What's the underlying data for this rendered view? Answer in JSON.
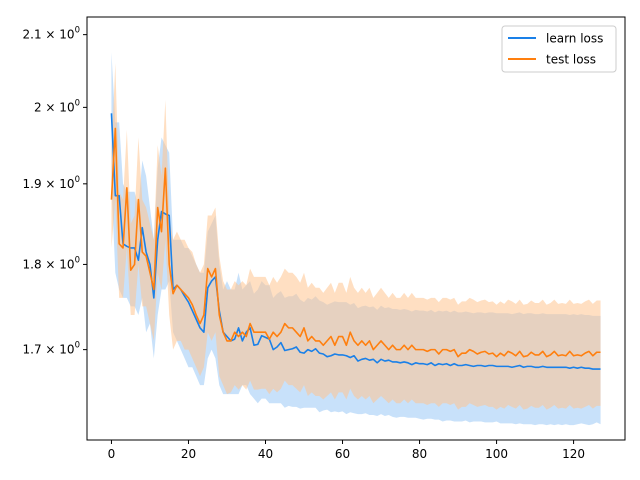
{
  "chart_data": {
    "type": "line",
    "title": "",
    "xlabel": "",
    "ylabel": "",
    "xlim": [
      -6.35,
      133.35
    ],
    "ylim": [
      1.6,
      2.125
    ],
    "yscale": "log",
    "grid": false,
    "legend_position": "top-right",
    "x_ticks": [
      0,
      20,
      40,
      60,
      80,
      100,
      120
    ],
    "y_ticks": [
      {
        "value": 1.7,
        "label": "1.7 × 10^0"
      },
      {
        "value": 1.8,
        "label": "1.8 × 10^0"
      },
      {
        "value": 1.9,
        "label": "1.9 × 10^0"
      },
      {
        "value": 2.0,
        "label": "2 × 10^0"
      },
      {
        "value": 2.1,
        "label": "2.1 × 10^0"
      }
    ],
    "x": [
      0,
      1,
      2,
      3,
      4,
      5,
      6,
      7,
      8,
      9,
      10,
      11,
      12,
      13,
      14,
      15,
      16,
      17,
      18,
      19,
      20,
      21,
      22,
      23,
      24,
      25,
      26,
      27,
      28,
      29,
      30,
      31,
      32,
      33,
      34,
      35,
      36,
      37,
      38,
      39,
      40,
      41,
      42,
      43,
      44,
      45,
      46,
      47,
      48,
      49,
      50,
      51,
      52,
      53,
      54,
      55,
      56,
      57,
      58,
      59,
      60,
      61,
      62,
      63,
      64,
      65,
      66,
      67,
      68,
      69,
      70,
      71,
      72,
      73,
      74,
      75,
      76,
      77,
      78,
      79,
      80,
      81,
      82,
      83,
      84,
      85,
      86,
      87,
      88,
      89,
      90,
      91,
      92,
      93,
      94,
      95,
      96,
      97,
      98,
      99,
      100,
      101,
      102,
      103,
      104,
      105,
      106,
      107,
      108,
      109,
      110,
      111,
      112,
      113,
      114,
      115,
      116,
      117,
      118,
      119,
      120,
      121,
      122,
      123,
      124,
      125,
      126,
      127
    ],
    "series": [
      {
        "name": "learn loss",
        "color": "#1f77b4",
        "line_color": "#1a80e8",
        "band_color": "#9bc8f5",
        "values": [
          1.992,
          1.885,
          1.885,
          1.825,
          1.822,
          1.82,
          1.82,
          1.805,
          1.845,
          1.815,
          1.8,
          1.76,
          1.83,
          1.865,
          1.862,
          1.86,
          1.77,
          1.775,
          1.77,
          1.762,
          1.755,
          1.745,
          1.735,
          1.725,
          1.72,
          1.772,
          1.78,
          1.785,
          1.745,
          1.72,
          1.715,
          1.71,
          1.712,
          1.725,
          1.71,
          1.72,
          1.725,
          1.705,
          1.706,
          1.716,
          1.714,
          1.712,
          1.7,
          1.703,
          1.708,
          1.699,
          1.7,
          1.701,
          1.703,
          1.697,
          1.696,
          1.7,
          1.698,
          1.701,
          1.696,
          1.695,
          1.692,
          1.693,
          1.695,
          1.694,
          1.694,
          1.693,
          1.691,
          1.693,
          1.687,
          1.689,
          1.69,
          1.688,
          1.689,
          1.685,
          1.689,
          1.687,
          1.688,
          1.686,
          1.686,
          1.685,
          1.686,
          1.685,
          1.683,
          1.685,
          1.684,
          1.684,
          1.683,
          1.685,
          1.682,
          1.684,
          1.683,
          1.684,
          1.682,
          1.684,
          1.682,
          1.682,
          1.683,
          1.682,
          1.681,
          1.682,
          1.682,
          1.681,
          1.682,
          1.682,
          1.681,
          1.681,
          1.681,
          1.681,
          1.68,
          1.681,
          1.682,
          1.68,
          1.681,
          1.681,
          1.68,
          1.68,
          1.681,
          1.68,
          1.68,
          1.68,
          1.68,
          1.68,
          1.68,
          1.679,
          1.68,
          1.679,
          1.68,
          1.679,
          1.679,
          1.678,
          1.678,
          1.678
        ],
        "lower": [
          1.9,
          1.79,
          1.77,
          1.76,
          1.76,
          1.75,
          1.75,
          1.74,
          1.76,
          1.72,
          1.73,
          1.69,
          1.74,
          1.77,
          1.77,
          1.78,
          1.72,
          1.71,
          1.7,
          1.69,
          1.68,
          1.68,
          1.67,
          1.66,
          1.66,
          1.69,
          1.7,
          1.69,
          1.66,
          1.65,
          1.65,
          1.65,
          1.65,
          1.65,
          1.66,
          1.66,
          1.65,
          1.645,
          1.64,
          1.645,
          1.645,
          1.64,
          1.64,
          1.64,
          1.64,
          1.635,
          1.637,
          1.636,
          1.636,
          1.634,
          1.635,
          1.635,
          1.635,
          1.635,
          1.63,
          1.632,
          1.633,
          1.63,
          1.631,
          1.63,
          1.631,
          1.628,
          1.63,
          1.629,
          1.628,
          1.628,
          1.629,
          1.627,
          1.627,
          1.626,
          1.628,
          1.626,
          1.627,
          1.625,
          1.624,
          1.625,
          1.625,
          1.624,
          1.624,
          1.624,
          1.623,
          1.622,
          1.623,
          1.623,
          1.622,
          1.622,
          1.62,
          1.621,
          1.621,
          1.62,
          1.62,
          1.62,
          1.621,
          1.619,
          1.62,
          1.62,
          1.62,
          1.619,
          1.619,
          1.619,
          1.62,
          1.618,
          1.618,
          1.618,
          1.618,
          1.617,
          1.618,
          1.617,
          1.617,
          1.617,
          1.616,
          1.617,
          1.617,
          1.616,
          1.617,
          1.616,
          1.617,
          1.616,
          1.617,
          1.616,
          1.616,
          1.617,
          1.618,
          1.617,
          1.616,
          1.617,
          1.619,
          1.617
        ],
        "upper": [
          2.075,
          1.98,
          1.98,
          1.9,
          1.89,
          1.89,
          1.89,
          1.87,
          1.93,
          1.91,
          1.87,
          1.83,
          1.92,
          1.96,
          1.95,
          1.94,
          1.83,
          1.83,
          1.83,
          1.82,
          1.82,
          1.81,
          1.8,
          1.79,
          1.79,
          1.84,
          1.85,
          1.86,
          1.8,
          1.77,
          1.78,
          1.77,
          1.77,
          1.79,
          1.77,
          1.775,
          1.78,
          1.765,
          1.77,
          1.78,
          1.775,
          1.775,
          1.76,
          1.765,
          1.768,
          1.76,
          1.762,
          1.762,
          1.765,
          1.758,
          1.755,
          1.76,
          1.758,
          1.762,
          1.757,
          1.755,
          1.752,
          1.754,
          1.756,
          1.755,
          1.755,
          1.755,
          1.752,
          1.754,
          1.748,
          1.75,
          1.751,
          1.749,
          1.75,
          1.746,
          1.751,
          1.748,
          1.749,
          1.747,
          1.747,
          1.746,
          1.747,
          1.746,
          1.744,
          1.746,
          1.745,
          1.745,
          1.744,
          1.746,
          1.743,
          1.745,
          1.744,
          1.745,
          1.743,
          1.745,
          1.743,
          1.743,
          1.744,
          1.743,
          1.742,
          1.743,
          1.743,
          1.742,
          1.743,
          1.743,
          1.742,
          1.742,
          1.742,
          1.742,
          1.741,
          1.742,
          1.743,
          1.741,
          1.742,
          1.742,
          1.741,
          1.741,
          1.742,
          1.741,
          1.741,
          1.741,
          1.741,
          1.741,
          1.741,
          1.74,
          1.741,
          1.74,
          1.741,
          1.74,
          1.74,
          1.739,
          1.739,
          1.739
        ]
      },
      {
        "name": "test loss",
        "color": "#ff7f0e",
        "line_color": "#ff7f0e",
        "band_color": "#ffc48f",
        "values": [
          1.88,
          1.972,
          1.825,
          1.82,
          1.895,
          1.793,
          1.8,
          1.88,
          1.815,
          1.81,
          1.79,
          1.77,
          1.87,
          1.84,
          1.92,
          1.8,
          1.765,
          1.775,
          1.77,
          1.765,
          1.76,
          1.752,
          1.74,
          1.73,
          1.74,
          1.795,
          1.785,
          1.795,
          1.74,
          1.72,
          1.71,
          1.71,
          1.72,
          1.715,
          1.72,
          1.715,
          1.73,
          1.72,
          1.72,
          1.72,
          1.72,
          1.712,
          1.72,
          1.715,
          1.72,
          1.73,
          1.725,
          1.725,
          1.72,
          1.715,
          1.725,
          1.71,
          1.715,
          1.71,
          1.71,
          1.705,
          1.71,
          1.715,
          1.705,
          1.715,
          1.715,
          1.705,
          1.72,
          1.71,
          1.705,
          1.71,
          1.705,
          1.71,
          1.7,
          1.705,
          1.71,
          1.705,
          1.7,
          1.705,
          1.7,
          1.7,
          1.705,
          1.7,
          1.705,
          1.7,
          1.7,
          1.7,
          1.698,
          1.7,
          1.7,
          1.695,
          1.7,
          1.7,
          1.698,
          1.7,
          1.692,
          1.696,
          1.696,
          1.7,
          1.698,
          1.695,
          1.697,
          1.698,
          1.695,
          1.696,
          1.692,
          1.696,
          1.693,
          1.698,
          1.696,
          1.693,
          1.698,
          1.692,
          1.693,
          1.697,
          1.694,
          1.694,
          1.698,
          1.692,
          1.694,
          1.698,
          1.693,
          1.694,
          1.693,
          1.698,
          1.693,
          1.694,
          1.693,
          1.696,
          1.698,
          1.693,
          1.697,
          1.697
        ],
        "lower": [
          1.82,
          1.88,
          1.76,
          1.76,
          1.82,
          1.74,
          1.74,
          1.8,
          1.75,
          1.75,
          1.73,
          1.71,
          1.79,
          1.77,
          1.83,
          1.74,
          1.7,
          1.71,
          1.71,
          1.7,
          1.7,
          1.69,
          1.68,
          1.67,
          1.68,
          1.72,
          1.71,
          1.72,
          1.67,
          1.66,
          1.65,
          1.652,
          1.66,
          1.655,
          1.66,
          1.655,
          1.665,
          1.655,
          1.655,
          1.656,
          1.656,
          1.65,
          1.656,
          1.652,
          1.656,
          1.665,
          1.66,
          1.66,
          1.656,
          1.652,
          1.66,
          1.648,
          1.652,
          1.648,
          1.648,
          1.644,
          1.648,
          1.652,
          1.644,
          1.652,
          1.652,
          1.644,
          1.656,
          1.648,
          1.644,
          1.648,
          1.644,
          1.648,
          1.64,
          1.644,
          1.648,
          1.644,
          1.64,
          1.644,
          1.64,
          1.64,
          1.644,
          1.64,
          1.644,
          1.64,
          1.64,
          1.64,
          1.638,
          1.64,
          1.64,
          1.636,
          1.64,
          1.64,
          1.638,
          1.64,
          1.633,
          1.636,
          1.636,
          1.64,
          1.638,
          1.636,
          1.637,
          1.638,
          1.636,
          1.636,
          1.633,
          1.636,
          1.634,
          1.638,
          1.636,
          1.634,
          1.638,
          1.633,
          1.634,
          1.637,
          1.635,
          1.635,
          1.638,
          1.633,
          1.635,
          1.638,
          1.634,
          1.635,
          1.634,
          1.638,
          1.634,
          1.635,
          1.634,
          1.636,
          1.638,
          1.634,
          1.637,
          1.637
        ],
        "upper": [
          1.94,
          2.06,
          1.89,
          1.88,
          1.97,
          1.85,
          1.86,
          1.96,
          1.88,
          1.87,
          1.85,
          1.83,
          1.95,
          1.91,
          2.01,
          1.86,
          1.83,
          1.84,
          1.83,
          1.83,
          1.82,
          1.815,
          1.8,
          1.79,
          1.8,
          1.86,
          1.86,
          1.87,
          1.81,
          1.78,
          1.77,
          1.77,
          1.78,
          1.775,
          1.78,
          1.775,
          1.795,
          1.785,
          1.785,
          1.785,
          1.785,
          1.775,
          1.785,
          1.778,
          1.785,
          1.795,
          1.79,
          1.79,
          1.785,
          1.778,
          1.79,
          1.772,
          1.778,
          1.772,
          1.772,
          1.766,
          1.772,
          1.778,
          1.766,
          1.778,
          1.778,
          1.766,
          1.785,
          1.772,
          1.766,
          1.772,
          1.766,
          1.772,
          1.76,
          1.766,
          1.772,
          1.766,
          1.76,
          1.766,
          1.76,
          1.76,
          1.766,
          1.76,
          1.766,
          1.76,
          1.76,
          1.76,
          1.758,
          1.76,
          1.76,
          1.755,
          1.76,
          1.76,
          1.758,
          1.76,
          1.752,
          1.756,
          1.756,
          1.76,
          1.758,
          1.755,
          1.757,
          1.758,
          1.755,
          1.756,
          1.752,
          1.756,
          1.753,
          1.758,
          1.756,
          1.753,
          1.758,
          1.752,
          1.753,
          1.757,
          1.754,
          1.754,
          1.758,
          1.752,
          1.754,
          1.758,
          1.753,
          1.754,
          1.753,
          1.758,
          1.753,
          1.754,
          1.753,
          1.756,
          1.758,
          1.753,
          1.757,
          1.757
        ]
      }
    ]
  }
}
